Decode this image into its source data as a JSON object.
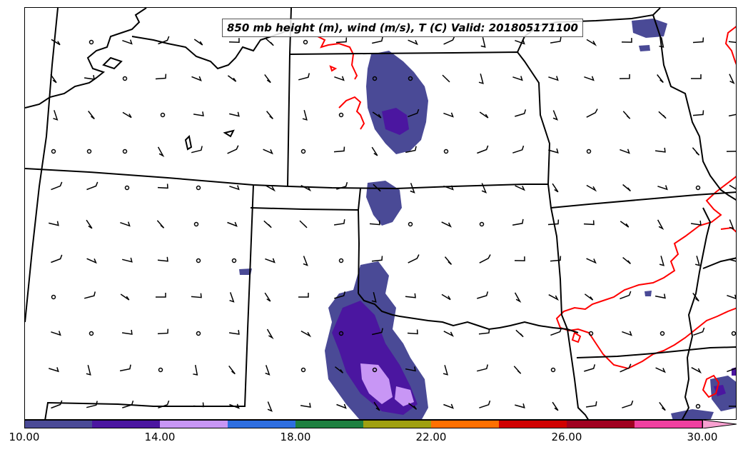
{
  "title": "850 mb height (m), wind (m/s), T (C) Valid: 201805171100",
  "colorbar": {
    "tick_labels": [
      "10.00",
      "14.00",
      "18.00",
      "22.00",
      "26.00",
      "30.00"
    ],
    "levels": [
      10,
      12,
      14,
      16,
      18,
      20,
      22,
      24,
      26,
      28,
      30
    ],
    "colors": [
      "#4a4a96",
      "#4b16a0",
      "#c896f5",
      "#2e6ee0",
      "#1e8040",
      "#a0a010",
      "#ff7000",
      "#d00000",
      "#a00020",
      "#f040a0"
    ],
    "extend_color": "#f8a0d0"
  },
  "contour_color": "#ff0000",
  "border_color": "#000000"
}
